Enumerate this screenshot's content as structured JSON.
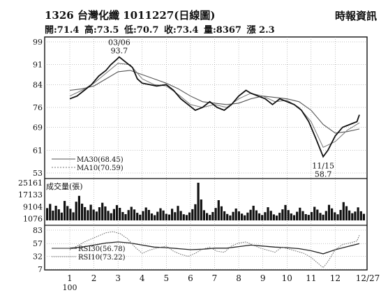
{
  "header": {
    "title": "1326 台灣化纖 1011227(日線圖)",
    "source": "時報資訊",
    "stats": {
      "open": "開:71.4",
      "high": "高:73.5",
      "low": "低:70.7",
      "close": "收:73.4",
      "volume": "量:8367",
      "change": "漲 2.3"
    }
  },
  "chart_data": {
    "type": "line",
    "year_label": "100",
    "x_months": [
      "1",
      "2",
      "3",
      "4",
      "5",
      "6",
      "7",
      "8",
      "9",
      "10",
      "11",
      "12",
      "12/27"
    ],
    "price_panel": {
      "yticks": [
        "99",
        "91",
        "84",
        "76",
        "69",
        "61",
        "53"
      ],
      "ylim": [
        53,
        99
      ],
      "annotations": {
        "high_date": "03/06",
        "high_value": "93.7",
        "low_date": "11/15",
        "low_value": "58.7"
      },
      "legend": [
        "MA30(68.45)",
        "MA10(70.59)"
      ],
      "price_points": [
        [
          1,
          79
        ],
        [
          1.3,
          80
        ],
        [
          1.6,
          82
        ],
        [
          1.9,
          84
        ],
        [
          2.2,
          87
        ],
        [
          2.5,
          89
        ],
        [
          2.7,
          91
        ],
        [
          2.9,
          92.5
        ],
        [
          3.05,
          93.7
        ],
        [
          3.3,
          92
        ],
        [
          3.6,
          90
        ],
        [
          3.8,
          86
        ],
        [
          4.0,
          84.5
        ],
        [
          4.3,
          84
        ],
        [
          4.6,
          83.5
        ],
        [
          5.0,
          84
        ],
        [
          5.3,
          82
        ],
        [
          5.6,
          79
        ],
        [
          5.9,
          77
        ],
        [
          6.2,
          75
        ],
        [
          6.5,
          76
        ],
        [
          6.8,
          78
        ],
        [
          7.1,
          76
        ],
        [
          7.4,
          75
        ],
        [
          7.7,
          77
        ],
        [
          8.0,
          80
        ],
        [
          8.3,
          82
        ],
        [
          8.5,
          81
        ],
        [
          8.8,
          80
        ],
        [
          9.1,
          79
        ],
        [
          9.4,
          77
        ],
        [
          9.7,
          79
        ],
        [
          10.0,
          78
        ],
        [
          10.3,
          77
        ],
        [
          10.6,
          75
        ],
        [
          10.9,
          71
        ],
        [
          11.2,
          65
        ],
        [
          11.5,
          58.7
        ],
        [
          11.7,
          61
        ],
        [
          12.0,
          66
        ],
        [
          12.3,
          69
        ],
        [
          12.6,
          70
        ],
        [
          12.9,
          71
        ],
        [
          13.0,
          73.4
        ]
      ],
      "ma10": [
        [
          1,
          80
        ],
        [
          1.5,
          82
        ],
        [
          2.0,
          84.5
        ],
        [
          2.5,
          88
        ],
        [
          3.0,
          91.5
        ],
        [
          3.5,
          91
        ],
        [
          4.0,
          86
        ],
        [
          4.5,
          84
        ],
        [
          5.0,
          83.5
        ],
        [
          5.5,
          80.5
        ],
        [
          6.0,
          77
        ],
        [
          6.5,
          76
        ],
        [
          7.0,
          77
        ],
        [
          7.5,
          76
        ],
        [
          8.0,
          79
        ],
        [
          8.5,
          81
        ],
        [
          9.0,
          80
        ],
        [
          9.5,
          78
        ],
        [
          10.0,
          78.5
        ],
        [
          10.5,
          76
        ],
        [
          11.0,
          71
        ],
        [
          11.5,
          62
        ],
        [
          12.0,
          64
        ],
        [
          12.5,
          68
        ],
        [
          13.0,
          70.59
        ]
      ],
      "ma30": [
        [
          1,
          82
        ],
        [
          1.5,
          82.5
        ],
        [
          2.0,
          83.5
        ],
        [
          2.5,
          86
        ],
        [
          3.0,
          88.5
        ],
        [
          3.5,
          89
        ],
        [
          4.0,
          87.5
        ],
        [
          4.5,
          86
        ],
        [
          5.0,
          84.5
        ],
        [
          5.5,
          82.5
        ],
        [
          6.0,
          80
        ],
        [
          6.5,
          78
        ],
        [
          7.0,
          77.5
        ],
        [
          7.5,
          77
        ],
        [
          8.0,
          77.5
        ],
        [
          8.5,
          79
        ],
        [
          9.0,
          80
        ],
        [
          9.5,
          79.5
        ],
        [
          10.0,
          79
        ],
        [
          10.5,
          78
        ],
        [
          11.0,
          75
        ],
        [
          11.5,
          70
        ],
        [
          12.0,
          67
        ],
        [
          12.5,
          67.5
        ],
        [
          13.0,
          68.45
        ]
      ]
    },
    "volume_panel": {
      "label": "成交量(張)",
      "yticks": [
        "25161",
        "17133",
        "9104",
        "1076"
      ],
      "ylim": [
        0,
        25161
      ],
      "volumes": [
        8200,
        11000,
        6500,
        9800,
        7400,
        5200,
        13000,
        9600,
        7800,
        5400,
        12500,
        16400,
        11200,
        8900,
        6800,
        10500,
        7200,
        5900,
        8800,
        11800,
        9300,
        6400,
        4800,
        7600,
        10200,
        8400,
        5600,
        4200,
        6900,
        9100,
        7300,
        5100,
        3800,
        6200,
        8600,
        7000,
        4600,
        3500,
        5800,
        8100,
        6600,
        4400,
        3900,
        7800,
        5500,
        9700,
        6300,
        4100,
        3600,
        5300,
        7500,
        10800,
        25161,
        14000,
        6800,
        4900,
        3700,
        5600,
        8300,
        13500,
        9400,
        6100,
        4300,
        3300,
        5700,
        7900,
        6000,
        4500,
        3400,
        5200,
        7100,
        9800,
        6700,
        4700,
        3600,
        5500,
        8800,
        6400,
        4000,
        3200,
        5100,
        7400,
        10300,
        6900,
        4600,
        3500,
        5800,
        8500,
        6200,
        4200,
        3700,
        5600,
        9100,
        7200,
        5000,
        3800,
        6300,
        10400,
        8000,
        5400,
        4100,
        7000,
        12200,
        9500,
        6600,
        4800,
        5900,
        8700,
        6100,
        4400
      ]
    },
    "rsi_panel": {
      "yticks": [
        "83",
        "57",
        "32",
        "7"
      ],
      "ylim": [
        7,
        83
      ],
      "legend": [
        "RSI30(56.78)",
        "RSI10(73.22)"
      ],
      "rsi10": [
        [
          1,
          45
        ],
        [
          1.3,
          52
        ],
        [
          1.6,
          60
        ],
        [
          1.9,
          66
        ],
        [
          2.2,
          72
        ],
        [
          2.5,
          78
        ],
        [
          2.8,
          80
        ],
        [
          3.1,
          76
        ],
        [
          3.4,
          66
        ],
        [
          3.7,
          50
        ],
        [
          4.0,
          38
        ],
        [
          4.3,
          44
        ],
        [
          4.6,
          48
        ],
        [
          5.0,
          52
        ],
        [
          5.3,
          42
        ],
        [
          5.6,
          36
        ],
        [
          5.9,
          32
        ],
        [
          6.2,
          38
        ],
        [
          6.5,
          46
        ],
        [
          6.8,
          50
        ],
        [
          7.1,
          42
        ],
        [
          7.4,
          40
        ],
        [
          7.7,
          52
        ],
        [
          8.0,
          58
        ],
        [
          8.3,
          60
        ],
        [
          8.6,
          54
        ],
        [
          8.9,
          48
        ],
        [
          9.2,
          44
        ],
        [
          9.5,
          40
        ],
        [
          9.8,
          50
        ],
        [
          10.1,
          46
        ],
        [
          10.4,
          42
        ],
        [
          10.7,
          38
        ],
        [
          11.0,
          30
        ],
        [
          11.3,
          18
        ],
        [
          11.5,
          10
        ],
        [
          11.7,
          22
        ],
        [
          12.0,
          45
        ],
        [
          12.3,
          55
        ],
        [
          12.6,
          58
        ],
        [
          12.9,
          62
        ],
        [
          13.0,
          73.22
        ]
      ],
      "rsi30": [
        [
          1,
          48
        ],
        [
          1.5,
          50
        ],
        [
          2.0,
          54
        ],
        [
          2.5,
          58
        ],
        [
          3.0,
          60
        ],
        [
          3.5,
          58
        ],
        [
          4.0,
          54
        ],
        [
          4.5,
          50
        ],
        [
          5.0,
          49
        ],
        [
          5.5,
          47
        ],
        [
          6.0,
          45
        ],
        [
          6.5,
          46
        ],
        [
          7.0,
          48
        ],
        [
          7.5,
          48
        ],
        [
          8.0,
          51
        ],
        [
          8.5,
          54
        ],
        [
          9.0,
          52
        ],
        [
          9.5,
          50
        ],
        [
          10.0,
          49
        ],
        [
          10.5,
          47
        ],
        [
          11.0,
          43
        ],
        [
          11.5,
          37
        ],
        [
          12.0,
          45
        ],
        [
          12.5,
          51
        ],
        [
          13.0,
          56.78
        ]
      ]
    }
  }
}
